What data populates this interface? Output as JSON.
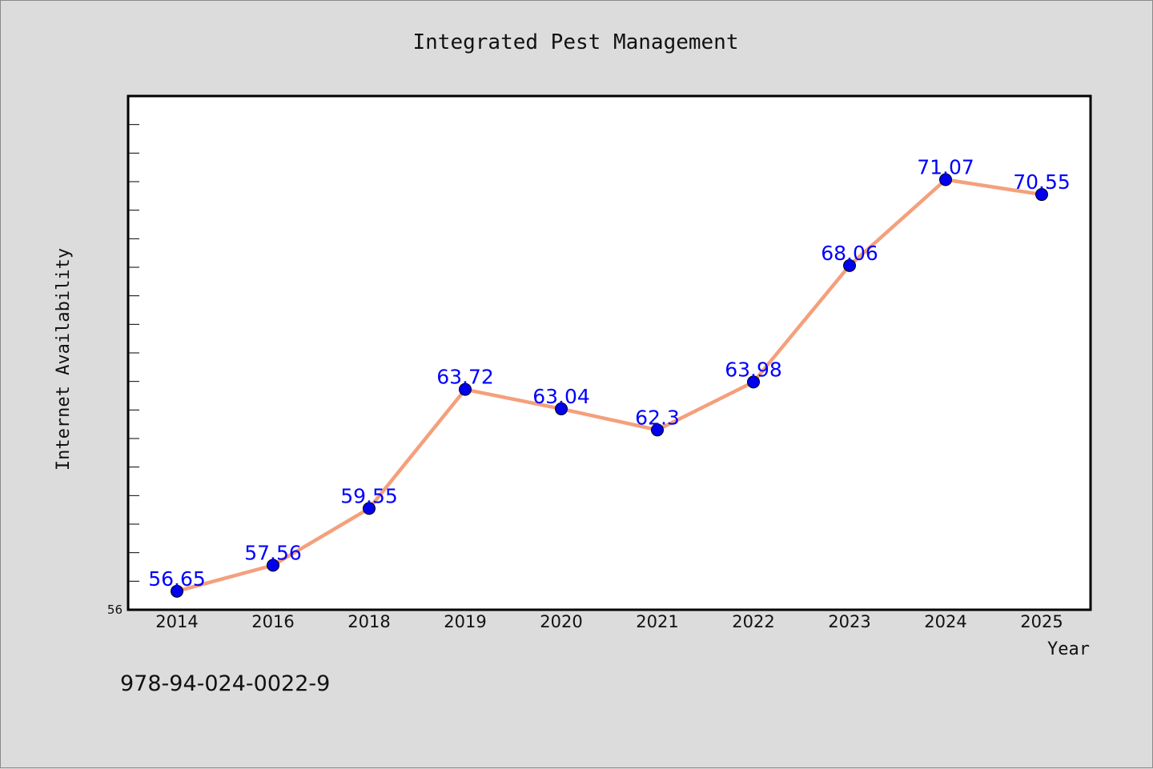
{
  "chart_data": {
    "type": "line",
    "title": "Integrated Pest Management",
    "xlabel": "Year",
    "ylabel": "Internet Availability",
    "categories": [
      "2014",
      "2016",
      "2018",
      "2019",
      "2020",
      "2021",
      "2022",
      "2023",
      "2024",
      "2025"
    ],
    "series": [
      {
        "values": [
          56.65,
          57.56,
          59.55,
          63.72,
          63.04,
          62.3,
          63.98,
          68.06,
          71.07,
          70.55
        ],
        "labels": [
          "56.65",
          "57.56",
          "59.55",
          "63.72",
          "63.04",
          "62.3",
          "63.98",
          "68.06",
          "71.07",
          "70.55"
        ],
        "line_color": "#f4a07c",
        "marker_color": "#0000ee"
      }
    ],
    "y_tick_labels": [
      "56"
    ],
    "ylim": [
      56,
      74
    ],
    "grid": false,
    "legend": "none"
  },
  "footnote": "978-94-024-0022-9",
  "colors": {
    "background": "#dcdcdc",
    "plot_background": "#ffffff",
    "data_label": "#0000ff"
  }
}
